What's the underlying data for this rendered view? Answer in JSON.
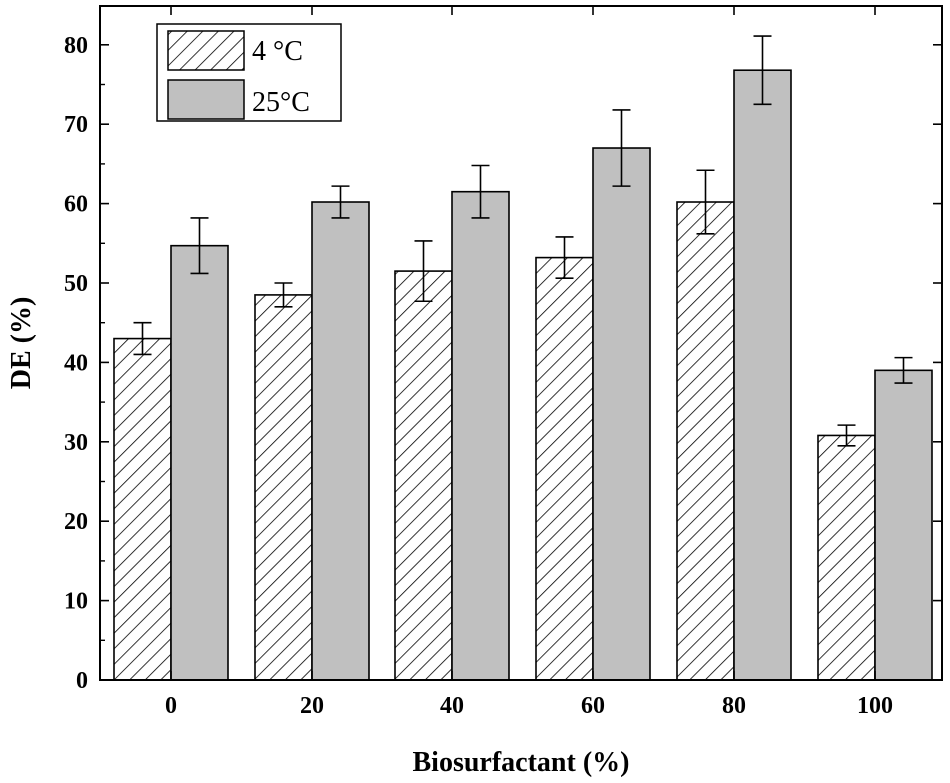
{
  "chart_data": {
    "type": "bar",
    "categories": [
      "0",
      "20",
      "40",
      "60",
      "80",
      "100"
    ],
    "xlabel": "Biosurfactant (%)",
    "ylabel": "DE  (%)",
    "ylim": [
      0,
      85
    ],
    "yticks": [
      0,
      10,
      20,
      30,
      40,
      50,
      60,
      70,
      80
    ],
    "grid": false,
    "legend": "top-left",
    "series": [
      {
        "name": "4 °C",
        "fill": "hatched",
        "color": "#ffffff",
        "values": [
          43,
          48.5,
          51.5,
          53.2,
          60.2,
          30.8
        ],
        "errors": [
          2.0,
          1.5,
          3.8,
          2.6,
          4.0,
          1.3
        ]
      },
      {
        "name": "25°C",
        "fill": "solid",
        "color": "#c0c0c0",
        "values": [
          54.7,
          60.2,
          61.5,
          67.0,
          76.8,
          39.0
        ],
        "errors": [
          3.5,
          2.0,
          3.3,
          4.8,
          4.3,
          1.6
        ]
      }
    ]
  }
}
